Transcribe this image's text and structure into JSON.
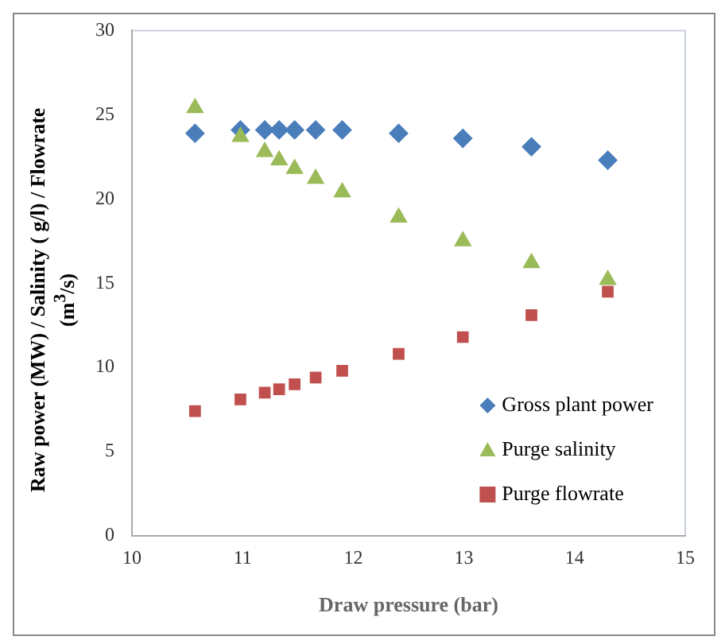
{
  "chart_data": {
    "type": "scatter",
    "xlabel": "Draw pressure (bar)",
    "ylabel": "Raw power (MW)  / Salinity ( g/l)  /  Flowrate (m$^{3}$/s)",
    "x": [
      10.57,
      10.98,
      11.2,
      11.33,
      11.47,
      11.66,
      11.9,
      12.41,
      12.99,
      13.61,
      14.3
    ],
    "series": [
      {
        "name": "Gross plant power",
        "color": "#4a7ebb",
        "marker": "diamond",
        "values": [
          23.9,
          24.1,
          24.1,
          24.1,
          24.1,
          24.1,
          24.1,
          23.9,
          23.6,
          23.1,
          22.3
        ]
      },
      {
        "name": "Purge salinity",
        "color": "#9bbb59",
        "marker": "triangle",
        "values": [
          25.4,
          23.7,
          22.8,
          22.3,
          21.8,
          21.2,
          20.4,
          18.9,
          17.5,
          16.2,
          15.2
        ]
      },
      {
        "name": "Purge flowrate",
        "color": "#c0504d",
        "marker": "square",
        "values": [
          7.4,
          8.1,
          8.5,
          8.7,
          9.0,
          9.4,
          9.8,
          10.8,
          11.8,
          13.1,
          14.5
        ]
      }
    ],
    "xlim": [
      10,
      15
    ],
    "xticks": [
      10,
      11,
      12,
      13,
      14,
      15
    ],
    "ylim": [
      0,
      30
    ],
    "yticks": [
      0,
      5,
      10,
      15,
      20,
      25,
      30
    ],
    "grid": false,
    "legend": "bottom right"
  }
}
